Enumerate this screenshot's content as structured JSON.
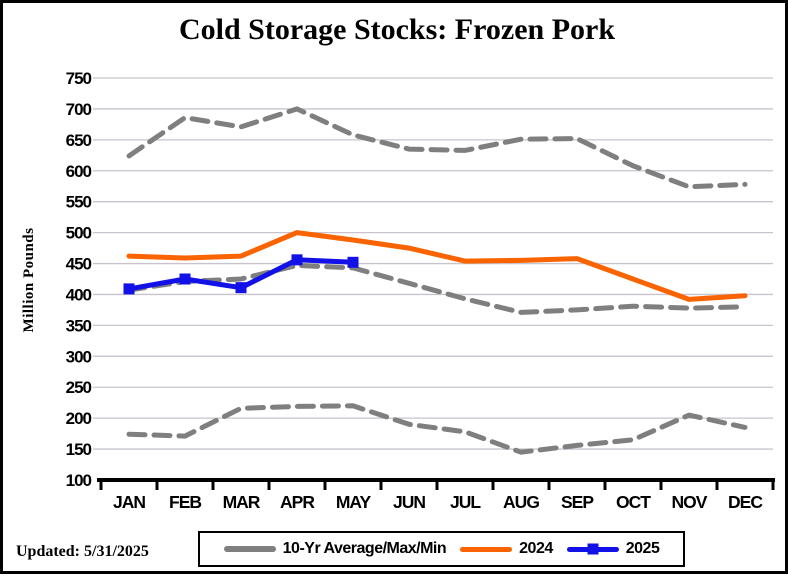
{
  "title": "Cold Storage Stocks: Frozen Pork",
  "updated_label": "Updated: 5/31/2025",
  "colors": {
    "gray": "#7f7f7f",
    "orange": "#fa6400",
    "blue": "#1212e8",
    "gridline": "#c9c3cd",
    "axis": "#000000"
  },
  "chart_data": {
    "type": "line",
    "title": "Cold Storage Stocks: Frozen Pork",
    "xlabel": "",
    "ylabel": "Million Pounds",
    "ylim": [
      100,
      750
    ],
    "ytick_step": 50,
    "yticks": [
      750,
      700,
      650,
      600,
      550,
      500,
      450,
      400,
      350,
      300,
      250,
      200,
      150,
      100
    ],
    "grid": true,
    "legend_position": "bottom",
    "categories": [
      "JAN",
      "FEB",
      "MAR",
      "APR",
      "MAY",
      "JUN",
      "JUL",
      "AUG",
      "SEP",
      "OCT",
      "NOV",
      "DEC"
    ],
    "series": [
      {
        "name": "10-Yr Max",
        "color": "#7f7f7f",
        "dashed": true,
        "marker": false,
        "values": [
          624,
          686,
          671,
          700,
          658,
          635,
          633,
          651,
          652,
          608,
          574,
          578
        ]
      },
      {
        "name": "10-Yr Average",
        "color": "#7f7f7f",
        "dashed": true,
        "marker": false,
        "values": [
          407,
          421,
          425,
          447,
          443,
          418,
          393,
          371,
          375,
          381,
          378,
          380
        ]
      },
      {
        "name": "10-Yr Min",
        "color": "#7f7f7f",
        "dashed": true,
        "marker": false,
        "values": [
          174,
          171,
          216,
          219,
          220,
          190,
          178,
          145,
          156,
          165,
          205,
          185
        ]
      },
      {
        "name": "2024",
        "color": "#fa6400",
        "dashed": false,
        "marker": false,
        "values": [
          462,
          459,
          462,
          500,
          488,
          475,
          454,
          455,
          458,
          425,
          392,
          398
        ]
      },
      {
        "name": "2025",
        "color": "#1212e8",
        "dashed": false,
        "marker": "square",
        "values": [
          409,
          425,
          411,
          456,
          452,
          null,
          null,
          null,
          null,
          null,
          null,
          null
        ]
      }
    ],
    "legend": [
      {
        "label": "10-Yr Average/Max/Min",
        "swatch": "gray-dash"
      },
      {
        "label": "2024",
        "swatch": "orange-line"
      },
      {
        "label": "2025",
        "swatch": "blue-line-square"
      }
    ]
  }
}
